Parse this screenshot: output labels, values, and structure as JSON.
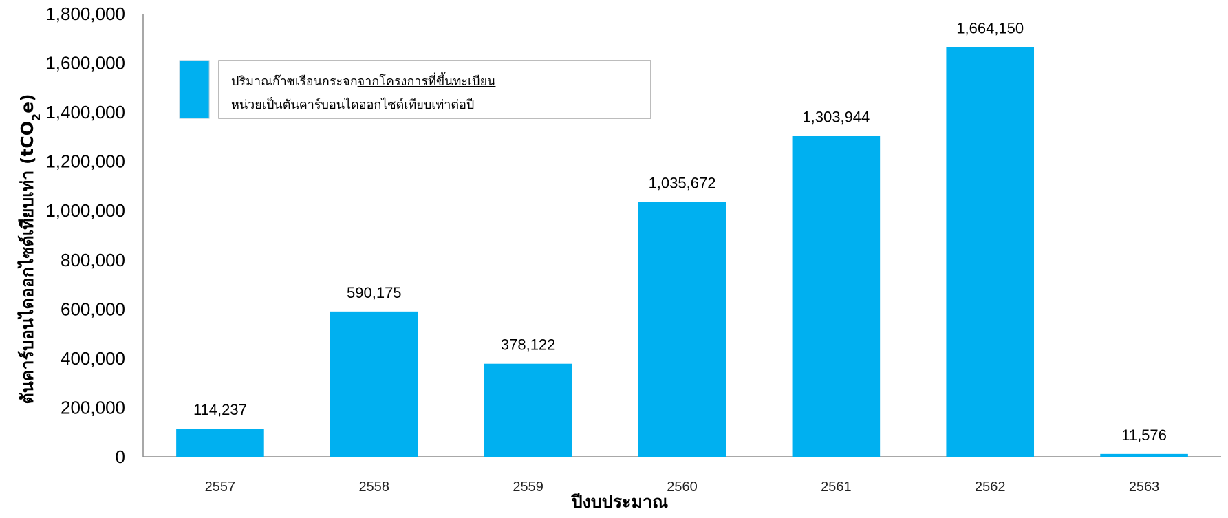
{
  "chart_data": {
    "type": "bar",
    "title": "",
    "xlabel": "ปีงบประมาณ",
    "ylabel": "ตันคาร์บอนไดออกไซด์เทียบเท่า (tCO2e)",
    "ylabel_parts": {
      "main": "ตันคาร์บอนไดออกไซด์เทียบเท่า (tCO",
      "sub": "2",
      "tail": "e)"
    },
    "categories": [
      "2557",
      "2558",
      "2559",
      "2560",
      "2561",
      "2562",
      "2563"
    ],
    "series": [
      {
        "name": "ปริมาณก๊าซเรือนกระจกจากโครงการที่ขึ้นทะเบียน",
        "values": [
          114237,
          590175,
          378122,
          1035672,
          1303944,
          1664150,
          11576
        ],
        "color": "#00B0F0"
      }
    ],
    "data_labels": [
      "114,237",
      "590,175",
      "378,122",
      "1,035,672",
      "1,303,944",
      "1,664,150",
      "11,576"
    ],
    "ylim": [
      0,
      1800000
    ],
    "yticks": [
      0,
      200000,
      400000,
      600000,
      800000,
      1000000,
      1200000,
      1400000,
      1600000,
      1800000
    ],
    "ytick_labels": [
      "0",
      "200,000",
      "400,000",
      "600,000",
      "800,000",
      "1,000,000",
      "1,200,000",
      "1,400,000",
      "1,600,000",
      "1,800,000"
    ],
    "grid": false,
    "legend": {
      "placement": "top-left",
      "line1_pre": "ปริมาณก๊าซเรือนกระจก",
      "line1_underlined": "จากโครงการที่ขึ้นทะเบียน",
      "line2": "หน่วยเป็นตันคาร์บอนไดออกไซด์เทียบเท่าต่อปี"
    }
  }
}
